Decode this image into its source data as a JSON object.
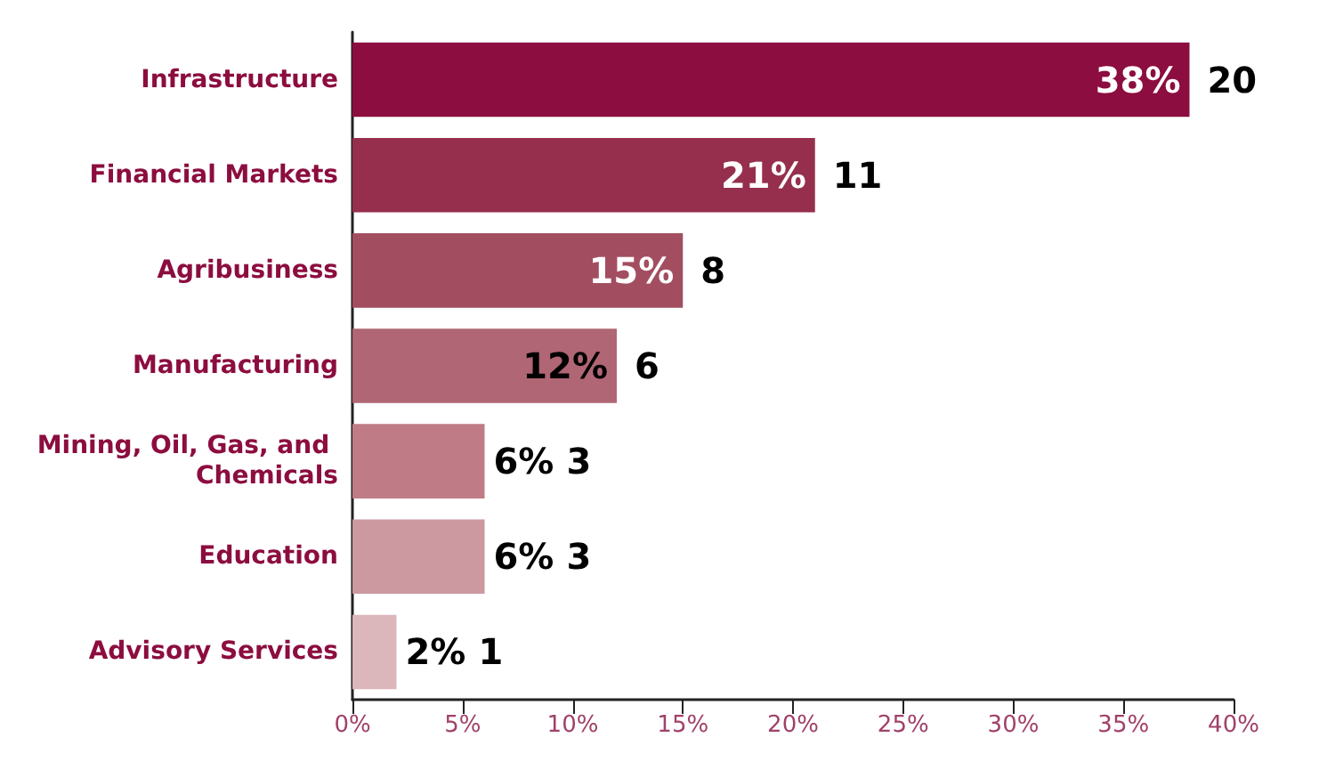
{
  "chart_data": {
    "type": "bar",
    "orientation": "horizontal",
    "categories": [
      "Infrastructure",
      "Financial Markets",
      "Agribusiness",
      "Manufacturing",
      "Mining, Oil, Gas, and Chemicals",
      "Education",
      "Advisory Services"
    ],
    "values": [
      38,
      21,
      15,
      12,
      6,
      6,
      2
    ],
    "colors": [
      "#8c0d3f",
      "#962f4d",
      "#a34e60",
      "#b06674",
      "#bf7c86",
      "#cc99a0",
      "#dbb7bc"
    ],
    "value_labels": [
      "38%",
      "21%",
      "15%",
      "12%",
      "6%",
      "6%",
      "2%"
    ],
    "xlim": [
      0,
      40
    ],
    "xticks": [
      {
        "value": 0,
        "label": "0%"
      },
      {
        "value": 5,
        "label": "5%"
      },
      {
        "value": 10,
        "label": "10%"
      },
      {
        "value": 15,
        "label": "15%"
      },
      {
        "value": 20,
        "label": "20%"
      },
      {
        "value": 25,
        "label": "25%"
      },
      {
        "value": 30,
        "label": "30%"
      },
      {
        "value": 35,
        "label": "35%"
      },
      {
        "value": 40,
        "label": "40%"
      }
    ],
    "annotations": [
      {
        "text": "20",
        "x": 38,
        "y": "Infrastructure"
      },
      {
        "text": "11",
        "x": 21,
        "y": "Financial Markets"
      },
      {
        "text": "8",
        "x": 15,
        "y": "Agribusiness"
      },
      {
        "text": "6",
        "x": 12,
        "y": "Manufacturing"
      },
      {
        "text": "3",
        "x": 6,
        "y": "Mining, Oil, Gas, and Chemicals"
      },
      {
        "text": "3",
        "x": 6,
        "y": "Education"
      },
      {
        "text": "1",
        "x": 2,
        "y": "Advisory Services"
      }
    ],
    "grid": false
  }
}
